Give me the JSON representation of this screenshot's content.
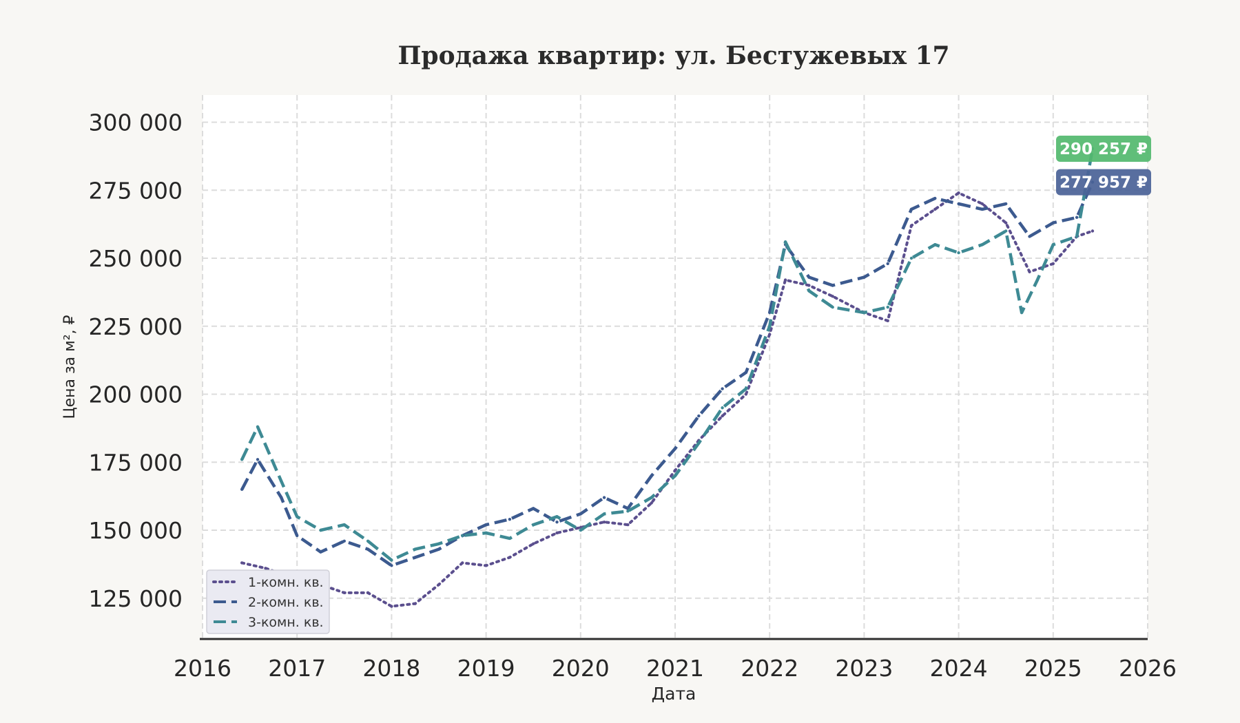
{
  "chart_data": {
    "type": "line",
    "title": "Продажа квартир: ул. Бестужевых 17",
    "xlabel": "Дата",
    "ylabel": "Цена за м², ₽",
    "xlim": [
      2016,
      2026
    ],
    "ylim": [
      110000,
      310000
    ],
    "x_ticks": [
      "2016",
      "2017",
      "2018",
      "2019",
      "2020",
      "2021",
      "2022",
      "2023",
      "2024",
      "2025",
      "2026"
    ],
    "y_ticks": [
      "125 000",
      "150 000",
      "175 000",
      "200 000",
      "225 000",
      "250 000",
      "275 000",
      "300 000"
    ],
    "grid": true,
    "legend_position": "bottom-left",
    "series": [
      {
        "name": "1-комн. кв.",
        "color": "#5b4f8e",
        "style": "dotted",
        "x": [
          "2016-06",
          "2016-09",
          "2017-01",
          "2017-04",
          "2017-07",
          "2017-10",
          "2018-01",
          "2018-04",
          "2018-07",
          "2018-10",
          "2019-01",
          "2019-04",
          "2019-07",
          "2019-10",
          "2020-01",
          "2020-04",
          "2020-07",
          "2020-10",
          "2021-01",
          "2021-04",
          "2021-07",
          "2021-10",
          "2022-01",
          "2022-03",
          "2022-06",
          "2022-09",
          "2023-01",
          "2023-04",
          "2023-07",
          "2023-10",
          "2024-01",
          "2024-04",
          "2024-07",
          "2024-10",
          "2025-01",
          "2025-04",
          "2025-06"
        ],
        "values": [
          138000,
          136000,
          132000,
          130000,
          127000,
          127000,
          122000,
          123000,
          130000,
          138000,
          137000,
          140000,
          145000,
          149000,
          151000,
          153000,
          152000,
          160000,
          172000,
          183000,
          192000,
          200000,
          222000,
          242000,
          240000,
          236000,
          230000,
          227000,
          262000,
          268000,
          274000,
          270000,
          263000,
          245000,
          248000,
          258000,
          260000
        ]
      },
      {
        "name": "2-комн. кв.",
        "color": "#3c5a8f",
        "style": "dashed",
        "x": [
          "2016-06",
          "2016-08",
          "2016-11",
          "2017-01",
          "2017-04",
          "2017-07",
          "2017-10",
          "2018-01",
          "2018-04",
          "2018-07",
          "2018-10",
          "2019-01",
          "2019-04",
          "2019-07",
          "2019-10",
          "2020-01",
          "2020-04",
          "2020-07",
          "2020-10",
          "2021-01",
          "2021-04",
          "2021-07",
          "2021-10",
          "2022-01",
          "2022-03",
          "2022-06",
          "2022-09",
          "2023-01",
          "2023-04",
          "2023-07",
          "2023-10",
          "2024-01",
          "2024-04",
          "2024-07",
          "2024-10",
          "2025-01",
          "2025-04",
          "2025-06"
        ],
        "values": [
          165000,
          176000,
          162000,
          148000,
          142000,
          146000,
          143000,
          137000,
          140000,
          143000,
          148000,
          152000,
          154000,
          158000,
          153000,
          156000,
          162000,
          158000,
          170000,
          180000,
          192000,
          202000,
          208000,
          230000,
          255000,
          243000,
          240000,
          243000,
          248000,
          268000,
          272000,
          270000,
          268000,
          270000,
          258000,
          263000,
          265000,
          277957
        ]
      },
      {
        "name": "3-комн. кв.",
        "color": "#3e8a94",
        "style": "dashed",
        "x": [
          "2016-06",
          "2016-08",
          "2016-11",
          "2017-01",
          "2017-04",
          "2017-07",
          "2017-10",
          "2018-01",
          "2018-04",
          "2018-07",
          "2018-10",
          "2019-01",
          "2019-04",
          "2019-07",
          "2019-10",
          "2020-01",
          "2020-04",
          "2020-07",
          "2020-10",
          "2021-01",
          "2021-04",
          "2021-07",
          "2021-10",
          "2022-01",
          "2022-03",
          "2022-06",
          "2022-09",
          "2023-01",
          "2023-04",
          "2023-07",
          "2023-10",
          "2024-01",
          "2024-04",
          "2024-07",
          "2024-09",
          "2024-11",
          "2025-01",
          "2025-04",
          "2025-06"
        ],
        "values": [
          176000,
          188000,
          168000,
          155000,
          150000,
          152000,
          146000,
          139000,
          143000,
          145000,
          148000,
          149000,
          147000,
          152000,
          155000,
          150000,
          156000,
          157000,
          162000,
          170000,
          182000,
          195000,
          202000,
          225000,
          256000,
          238000,
          232000,
          230000,
          232000,
          250000,
          255000,
          252000,
          255000,
          260000,
          230000,
          242000,
          255000,
          258000,
          290257
        ]
      }
    ],
    "badges": [
      {
        "text": "290 257 ₽",
        "series": "3-комн. кв.",
        "value": 290257,
        "color": "#52b86e"
      },
      {
        "text": "277 957 ₽",
        "series": "2-комн. кв.",
        "value": 277957,
        "color": "#4a6297"
      }
    ]
  }
}
